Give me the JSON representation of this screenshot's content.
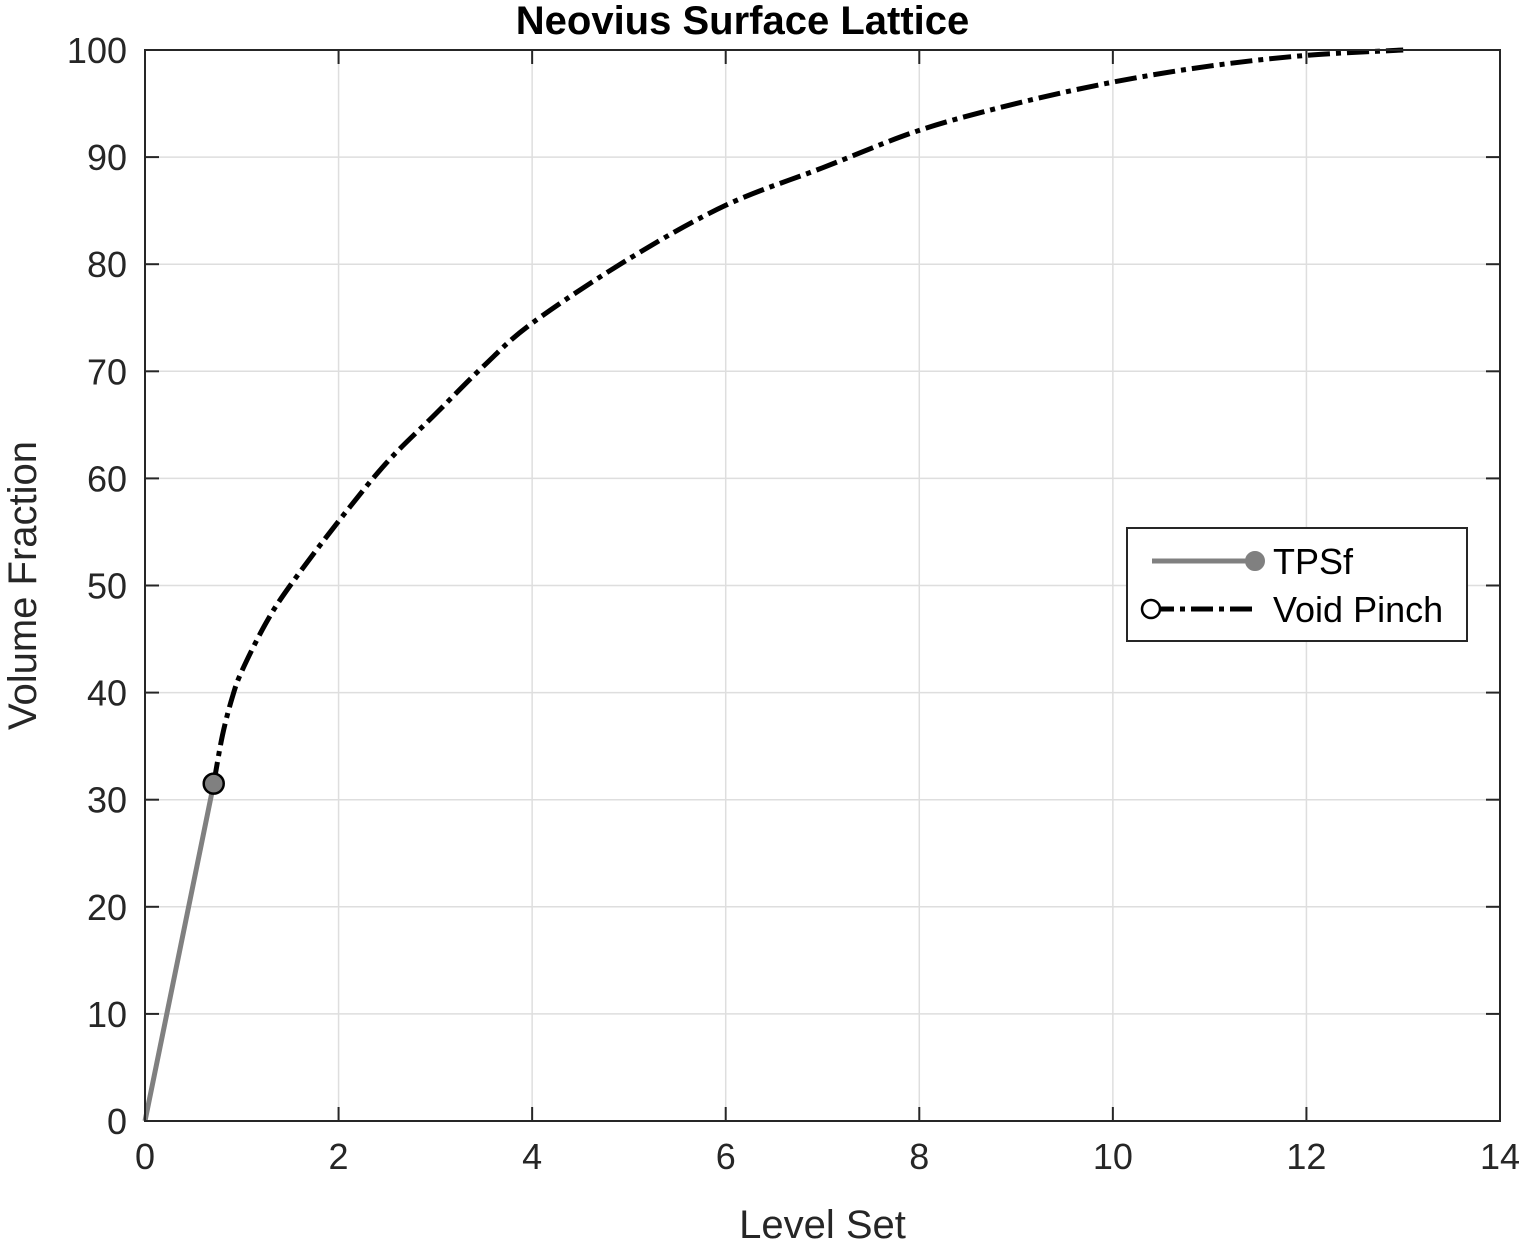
{
  "chart_data": {
    "type": "line",
    "title": "Neovius Surface Lattice",
    "xlabel": "Level Set",
    "ylabel": "Volume Fraction",
    "xlim": [
      0,
      14
    ],
    "ylim": [
      0,
      100
    ],
    "xticks": [
      0,
      2,
      4,
      6,
      8,
      10,
      12,
      14
    ],
    "yticks": [
      0,
      10,
      20,
      30,
      40,
      50,
      60,
      70,
      80,
      90,
      100
    ],
    "grid": true,
    "legend_position": "right",
    "series": [
      {
        "name": "TPSf",
        "style": "solid",
        "color": "#808080",
        "x": [
          0,
          0.71
        ],
        "y": [
          0,
          31.5
        ],
        "end_marker": {
          "x": 0.71,
          "y": 31.5
        }
      },
      {
        "name": "Void Pinch",
        "style": "dash-dot",
        "color": "#000000",
        "x": [
          0.71,
          0.8,
          0.9,
          1.0,
          1.25,
          1.5,
          2.0,
          2.5,
          3.0,
          3.5,
          4.0,
          5.0,
          6.0,
          7.0,
          8.0,
          9.0,
          10.0,
          11.0,
          12.0,
          13.0
        ],
        "y": [
          31.5,
          36.0,
          39.5,
          42.0,
          46.5,
          50.0,
          56.0,
          61.5,
          66.0,
          70.5,
          74.5,
          80.5,
          85.5,
          89.0,
          92.5,
          95.0,
          97.0,
          98.5,
          99.5,
          100.0
        ]
      }
    ]
  }
}
